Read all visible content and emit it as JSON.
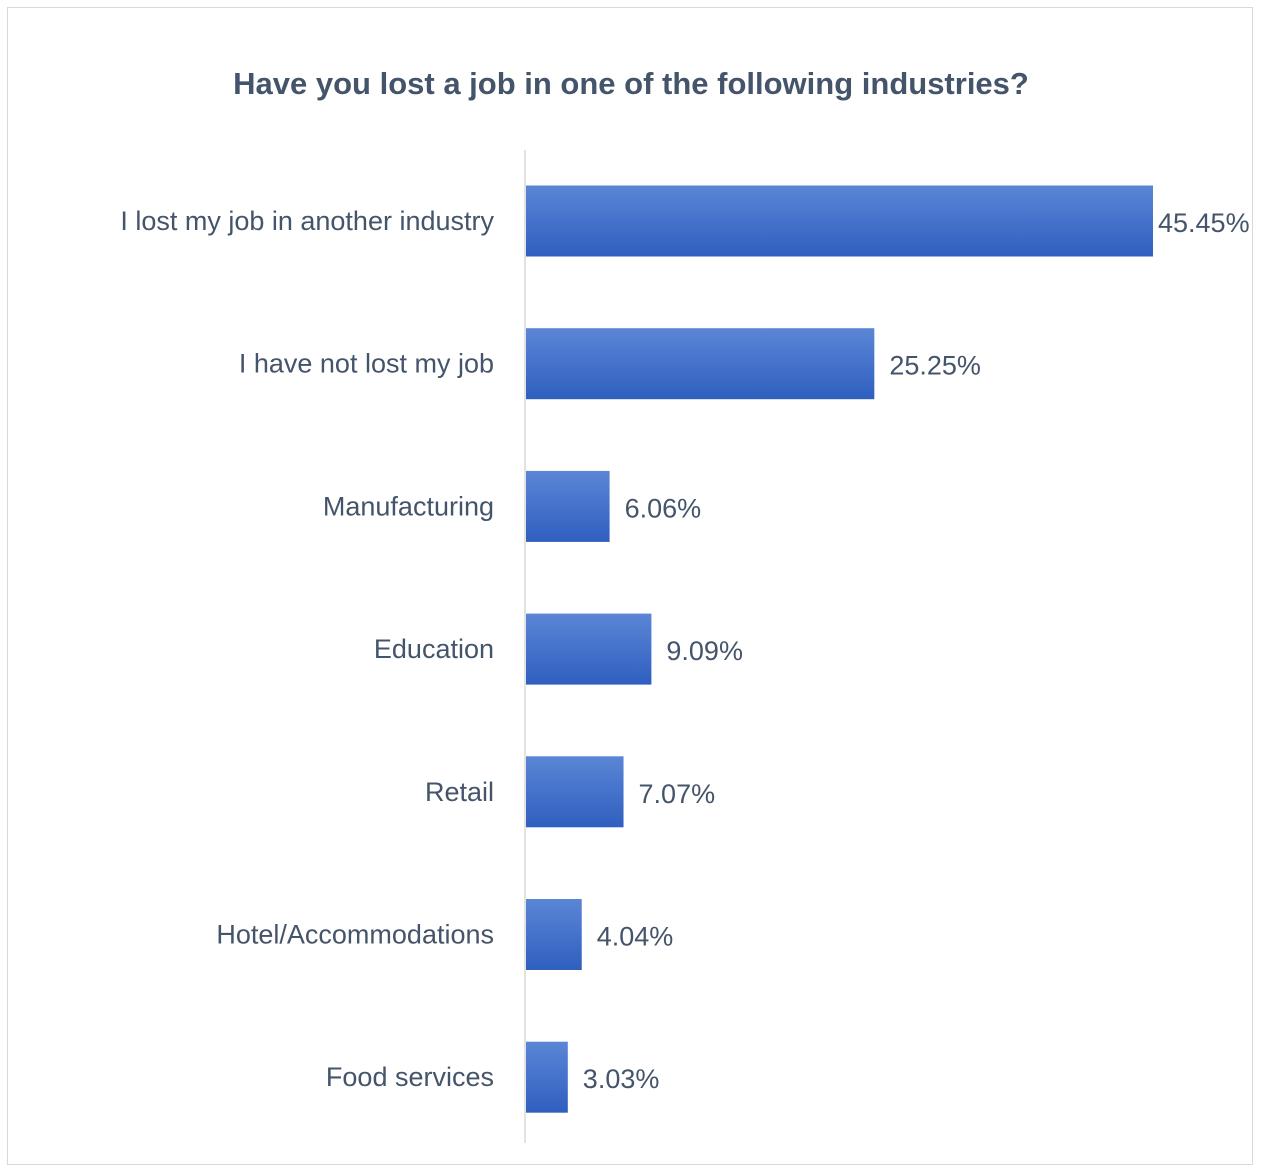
{
  "chart_data": {
    "type": "bar",
    "orientation": "horizontal",
    "title": "Have you lost a job in one of the following industries?",
    "xlabel": "",
    "ylabel": "",
    "categories": [
      "I lost my job in another industry",
      "I have not lost my job",
      "Manufacturing",
      "Education",
      "Retail",
      "Hotel/Accommodations",
      "Food services"
    ],
    "values": [
      45.45,
      25.25,
      6.06,
      9.09,
      7.07,
      4.04,
      3.03
    ],
    "value_labels": [
      "45.45%",
      "25.25%",
      "6.06%",
      "9.09%",
      "7.07%",
      "4.04%",
      "3.03%"
    ],
    "xlim": [
      0,
      45.45
    ],
    "grid": false,
    "legend": "none",
    "colors": {
      "bar_top": "#5b86d6",
      "bar_bottom": "#2f5fbf",
      "text": "#44546a",
      "axis": "#d9d9d9"
    }
  }
}
